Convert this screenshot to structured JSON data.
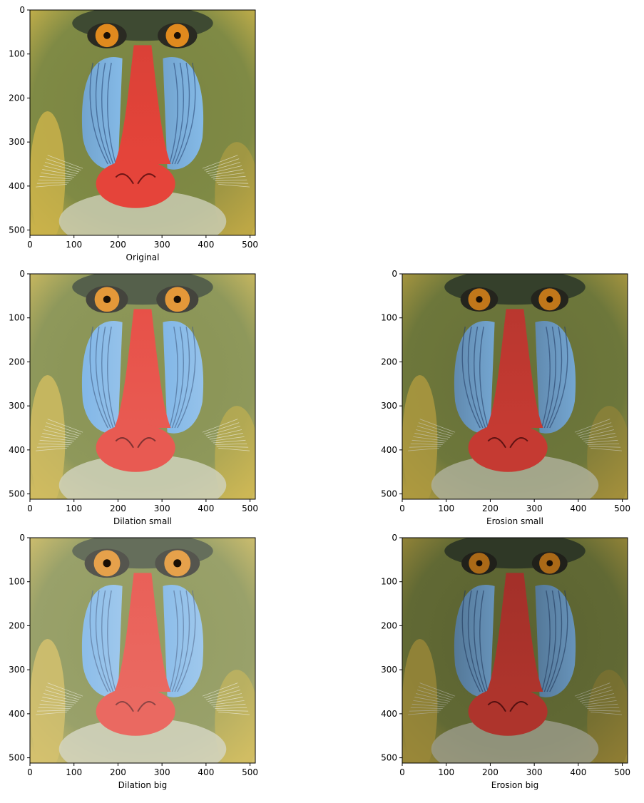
{
  "figure": {
    "axes_ticks": {
      "x": [
        "0",
        "100",
        "200",
        "300",
        "400",
        "500"
      ],
      "y": [
        "0",
        "100",
        "200",
        "300",
        "400",
        "500"
      ]
    },
    "panels": [
      {
        "key": "original",
        "label": "Original",
        "tone": "normal"
      },
      {
        "key": "dilation-small",
        "label": "Dilation small",
        "tone": "light"
      },
      {
        "key": "erosion-small",
        "label": "Erosion small",
        "tone": "dark"
      },
      {
        "key": "dilation-big",
        "label": "Dilation big",
        "tone": "lighter"
      },
      {
        "key": "erosion-big",
        "label": "Erosion big",
        "tone": "darker"
      }
    ]
  },
  "colors": {
    "fur_green": "#7f8a45",
    "fur_yellow": "#c9b24a",
    "cheek_blue": "#7fb6e6",
    "nose_red": "#e5443a",
    "eye_orange": "#e08a1e"
  }
}
